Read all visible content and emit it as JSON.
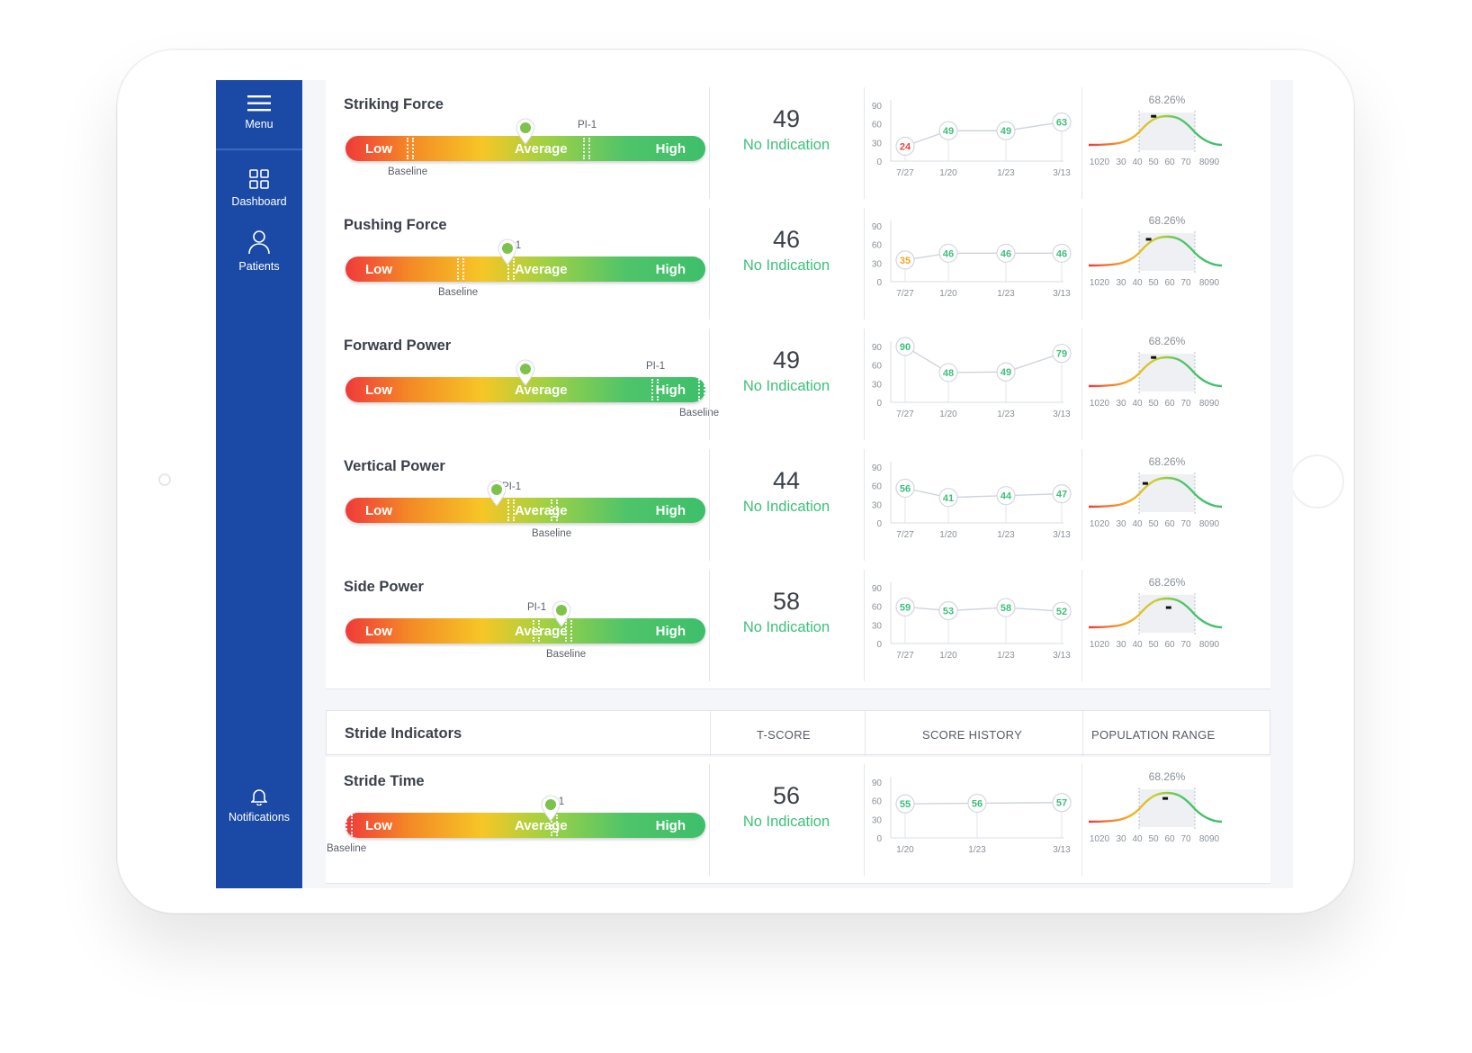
{
  "sidebar": {
    "menu_label": "Menu",
    "dashboard_label": "Dashboard",
    "patients_label": "Patients",
    "notifications_label": "Notifications"
  },
  "labels": {
    "low": "Low",
    "average": "Average",
    "high": "High",
    "pi": "PI-1",
    "baseline": "Baseline",
    "no_indication": "No Indication"
  },
  "colors": {
    "sidebar": "#1b4aa6",
    "good": "#3ec07a",
    "warn": "#f5a623",
    "bad": "#e94646"
  },
  "history_axis": {
    "y_ticks": [
      "90",
      "60",
      "30",
      "0"
    ],
    "ymax": 90
  },
  "population": {
    "pct_label": "68.26%",
    "ticks": [
      "1020",
      "30",
      "40",
      "50",
      "60",
      "70",
      "8090"
    ]
  },
  "metrics": [
    {
      "title": "Striking Force",
      "tscore": "49",
      "marker": 0.5,
      "baseline": 0.18,
      "pi": 0.67,
      "history": [
        {
          "d": "7/27",
          "v": 24,
          "s": "bad"
        },
        {
          "d": "1/20",
          "v": 49,
          "s": "good"
        },
        {
          "d": "1/23",
          "v": 49,
          "s": "good"
        },
        {
          "d": "3/13",
          "v": 63,
          "s": "good"
        }
      ]
    },
    {
      "title": "Pushing Force",
      "tscore": "46",
      "marker": 0.45,
      "baseline": 0.32,
      "pi": 0.46,
      "history": [
        {
          "d": "7/27",
          "v": 35,
          "s": "warn"
        },
        {
          "d": "1/20",
          "v": 46,
          "s": "good"
        },
        {
          "d": "1/23",
          "v": 46,
          "s": "good"
        },
        {
          "d": "3/13",
          "v": 46,
          "s": "good"
        }
      ]
    },
    {
      "title": "Forward Power",
      "tscore": "49",
      "marker": 0.5,
      "baseline": 0.99,
      "pi": 0.86,
      "history": [
        {
          "d": "7/27",
          "v": 90,
          "s": "good"
        },
        {
          "d": "1/20",
          "v": 48,
          "s": "good"
        },
        {
          "d": "1/23",
          "v": 49,
          "s": "good"
        },
        {
          "d": "3/13",
          "v": 79,
          "s": "good"
        }
      ]
    },
    {
      "title": "Vertical Power",
      "tscore": "44",
      "marker": 0.42,
      "baseline": 0.58,
      "pi": 0.46,
      "history": [
        {
          "d": "7/27",
          "v": 56,
          "s": "good"
        },
        {
          "d": "1/20",
          "v": 41,
          "s": "good"
        },
        {
          "d": "1/23",
          "v": 44,
          "s": "good"
        },
        {
          "d": "3/13",
          "v": 47,
          "s": "good"
        }
      ]
    },
    {
      "title": "Side Power",
      "tscore": "58",
      "marker": 0.6,
      "baseline": 0.62,
      "pi": 0.53,
      "history": [
        {
          "d": "7/27",
          "v": 59,
          "s": "good"
        },
        {
          "d": "1/20",
          "v": 53,
          "s": "good"
        },
        {
          "d": "1/23",
          "v": 58,
          "s": "good"
        },
        {
          "d": "3/13",
          "v": 52,
          "s": "good"
        }
      ]
    }
  ],
  "stride_header": {
    "title": "Stride Indicators",
    "col_tscore": "T-SCORE",
    "col_history": "SCORE HISTORY",
    "col_population": "POPULATION RANGE"
  },
  "stride": [
    {
      "title": "Stride Time",
      "tscore": "56",
      "marker": 0.57,
      "baseline": 0.01,
      "pi": 0.58,
      "history": [
        {
          "d": "1/20",
          "v": 55,
          "s": "good"
        },
        {
          "d": "1/23",
          "v": 56,
          "s": "good"
        },
        {
          "d": "3/13",
          "v": 57,
          "s": "good"
        }
      ]
    }
  ]
}
